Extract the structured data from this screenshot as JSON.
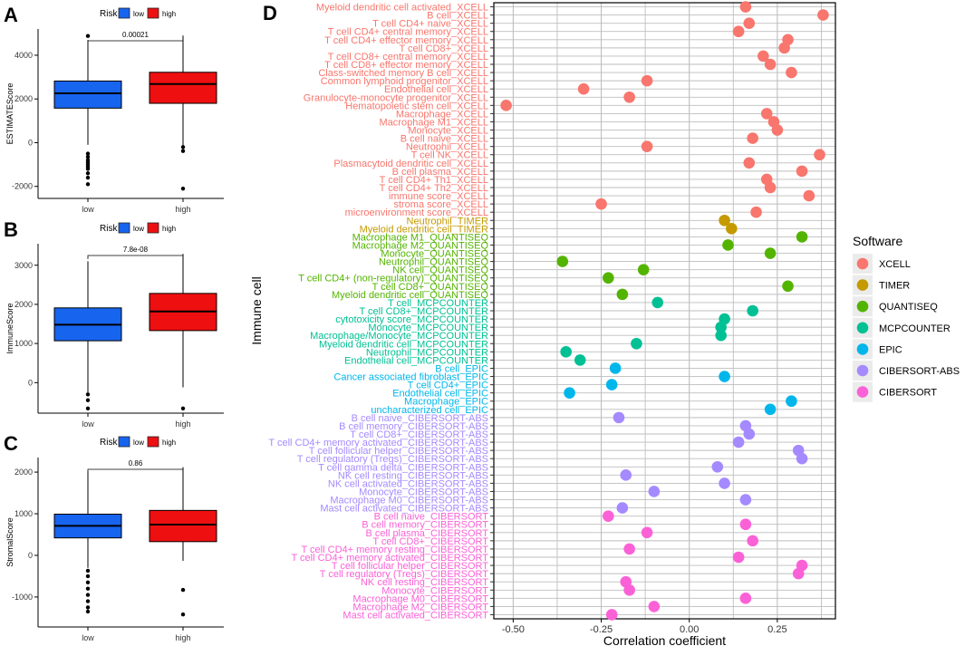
{
  "chart_data": [
    {
      "panel_label": "A",
      "type": "boxplot",
      "legend_title": "Risk",
      "legend_entries": [
        "low",
        "high"
      ],
      "ylabel": "ESTIMATEScore",
      "categories": [
        "low",
        "high"
      ],
      "yticks": [
        -2000,
        0,
        2000,
        4000
      ],
      "ylim": [
        -2550,
        5200
      ],
      "pvalue": "0.00021",
      "boxes": [
        {
          "name": "low",
          "q1": 1580,
          "median": 2260,
          "q3": 2820,
          "whisker_low": -100,
          "whisker_high": 4700,
          "outliers": [
            4880,
            -500,
            -650,
            -800,
            -900,
            -1000,
            -1100,
            -1200,
            -1400,
            -1600,
            -1900
          ]
        },
        {
          "name": "high",
          "q1": 1800,
          "median": 2680,
          "q3": 3220,
          "whisker_low": -130,
          "whisker_high": 4900,
          "outliers": [
            -200,
            -380,
            -2100
          ]
        }
      ]
    },
    {
      "panel_label": "B",
      "type": "boxplot",
      "legend_title": "Risk",
      "legend_entries": [
        "low",
        "high"
      ],
      "ylabel": "ImmuneScore",
      "categories": [
        "low",
        "high"
      ],
      "yticks": [
        0,
        1000,
        2000,
        3000
      ],
      "ylim": [
        -780,
        3550
      ],
      "pvalue": "7.8e-08",
      "boxes": [
        {
          "name": "low",
          "q1": 1070,
          "median": 1480,
          "q3": 1910,
          "whisker_low": -250,
          "whisker_high": 3100,
          "outliers": [
            -300,
            -450,
            -660
          ]
        },
        {
          "name": "high",
          "q1": 1330,
          "median": 1820,
          "q3": 2280,
          "whisker_low": -120,
          "whisker_high": 3290,
          "outliers": [
            -660
          ]
        }
      ]
    },
    {
      "panel_label": "C",
      "type": "boxplot",
      "legend_title": "Risk",
      "legend_entries": [
        "low",
        "high"
      ],
      "ylabel": "StromalScore",
      "categories": [
        "low",
        "high"
      ],
      "yticks": [
        -1000,
        0,
        1000,
        2000
      ],
      "ylim": [
        -1720,
        2350
      ],
      "pvalue": "0.86",
      "boxes": [
        {
          "name": "low",
          "q1": 420,
          "median": 710,
          "q3": 990,
          "whisker_low": -300,
          "whisker_high": 2020,
          "outliers": [
            -370,
            -500,
            -650,
            -800,
            -950,
            -1100,
            -1250,
            -1350
          ]
        },
        {
          "name": "high",
          "q1": 330,
          "median": 740,
          "q3": 1080,
          "whisker_low": -130,
          "whisker_high": 2120,
          "outliers": [
            -830,
            -1420
          ]
        }
      ]
    },
    {
      "panel_label": "D",
      "type": "scatter",
      "xlabel": "Correlation coefficient",
      "ylabel": "Immune cell",
      "xlim": [
        -0.555,
        0.415
      ],
      "xticks": [
        -0.5,
        -0.25,
        0.0,
        0.25
      ],
      "xtick_labels": [
        "-0.50",
        "-0.25",
        "0.00",
        "0.25"
      ],
      "legend_title": "Software",
      "groups": [
        {
          "name": "XCELL",
          "color": "#F8766D"
        },
        {
          "name": "TIMER",
          "color": "#C49A00"
        },
        {
          "name": "QUANTISEQ",
          "color": "#53B400"
        },
        {
          "name": "MCPCOUNTER",
          "color": "#00C094"
        },
        {
          "name": "EPIC",
          "color": "#00B6EB"
        },
        {
          "name": "CIBERSORT-ABS",
          "color": "#A58AFF"
        },
        {
          "name": "CIBERSORT",
          "color": "#FB61D7"
        }
      ],
      "points": [
        {
          "label": "Myeloid dendritic cell activated_XCELL",
          "value": 0.16,
          "group": "XCELL"
        },
        {
          "label": "B cell_XCELL",
          "value": 0.38,
          "group": "XCELL"
        },
        {
          "label": "T cell CD4+ naive_XCELL",
          "value": 0.17,
          "group": "XCELL"
        },
        {
          "label": "T cell CD4+ central memory_XCELL",
          "value": 0.14,
          "group": "XCELL"
        },
        {
          "label": "T cell CD4+ effector memory_XCELL",
          "value": 0.28,
          "group": "XCELL"
        },
        {
          "label": "T cell CD8+_XCELL",
          "value": 0.27,
          "group": "XCELL"
        },
        {
          "label": "T cell CD8+ central memory_XCELL",
          "value": 0.21,
          "group": "XCELL"
        },
        {
          "label": "T cell CD8+ effector memory_XCELL",
          "value": 0.23,
          "group": "XCELL"
        },
        {
          "label": "Class-switched memory B cell_XCELL",
          "value": 0.29,
          "group": "XCELL"
        },
        {
          "label": "Common lymphoid progenitor_XCELL",
          "value": -0.12,
          "group": "XCELL"
        },
        {
          "label": "Endothelial cell_XCELL",
          "value": -0.3,
          "group": "XCELL"
        },
        {
          "label": "Granulocyte-monocyte progenitor_XCELL",
          "value": -0.17,
          "group": "XCELL"
        },
        {
          "label": "Hematopoietic stem cell_XCELL",
          "value": -0.52,
          "group": "XCELL"
        },
        {
          "label": "Macrophage_XCELL",
          "value": 0.22,
          "group": "XCELL"
        },
        {
          "label": "Macrophage M1_XCELL",
          "value": 0.24,
          "group": "XCELL"
        },
        {
          "label": "Monocyte_XCELL",
          "value": 0.25,
          "group": "XCELL"
        },
        {
          "label": "B cell naive_XCELL",
          "value": 0.18,
          "group": "XCELL"
        },
        {
          "label": "Neutrophil_XCELL",
          "value": -0.12,
          "group": "XCELL"
        },
        {
          "label": "T cell NK_XCELL",
          "value": 0.37,
          "group": "XCELL"
        },
        {
          "label": "Plasmacytoid dendritic cell_XCELL",
          "value": 0.17,
          "group": "XCELL"
        },
        {
          "label": "B cell plasma_XCELL",
          "value": 0.32,
          "group": "XCELL"
        },
        {
          "label": "T cell CD4+ Th1_XCELL",
          "value": 0.22,
          "group": "XCELL"
        },
        {
          "label": "T cell CD4+ Th2_XCELL",
          "value": 0.23,
          "group": "XCELL"
        },
        {
          "label": "immune score_XCELL",
          "value": 0.34,
          "group": "XCELL"
        },
        {
          "label": "stroma score_XCELL",
          "value": -0.25,
          "group": "XCELL"
        },
        {
          "label": "microenvironment score_XCELL",
          "value": 0.19,
          "group": "XCELL"
        },
        {
          "label": "Neutrophil_TIMER",
          "value": 0.1,
          "group": "TIMER"
        },
        {
          "label": "Myeloid dendritic cell_TIMER",
          "value": 0.12,
          "group": "TIMER"
        },
        {
          "label": "Macrophage M1_QUANTISEQ",
          "value": 0.32,
          "group": "QUANTISEQ"
        },
        {
          "label": "Macrophage M2_QUANTISEQ",
          "value": 0.11,
          "group": "QUANTISEQ"
        },
        {
          "label": "Monocyte_QUANTISEQ",
          "value": 0.23,
          "group": "QUANTISEQ"
        },
        {
          "label": "Neutrophil_QUANTISEQ",
          "value": -0.36,
          "group": "QUANTISEQ"
        },
        {
          "label": "NK cell_QUANTISEQ",
          "value": -0.13,
          "group": "QUANTISEQ"
        },
        {
          "label": "T cell CD4+ (non-regulatory)_QUANTISEQ",
          "value": -0.23,
          "group": "QUANTISEQ"
        },
        {
          "label": "T cell CD8+_QUANTISEQ",
          "value": 0.28,
          "group": "QUANTISEQ"
        },
        {
          "label": "Myeloid dendritic cell_QUANTISEQ",
          "value": -0.19,
          "group": "QUANTISEQ"
        },
        {
          "label": "T cell_MCPCOUNTER",
          "value": -0.09,
          "group": "MCPCOUNTER"
        },
        {
          "label": "T cell CD8+_MCPCOUNTER",
          "value": 0.18,
          "group": "MCPCOUNTER"
        },
        {
          "label": "cytotoxicity score_MCPCOUNTER",
          "value": 0.1,
          "group": "MCPCOUNTER"
        },
        {
          "label": "Monocyte_MCPCOUNTER",
          "value": 0.09,
          "group": "MCPCOUNTER"
        },
        {
          "label": "Macrophage/Monocyte_MCPCOUNTER",
          "value": 0.09,
          "group": "MCPCOUNTER"
        },
        {
          "label": "Myeloid dendritic cell_MCPCOUNTER",
          "value": -0.15,
          "group": "MCPCOUNTER"
        },
        {
          "label": "Neutrophil_MCPCOUNTER",
          "value": -0.35,
          "group": "MCPCOUNTER"
        },
        {
          "label": "Endothelial cell_MCPCOUNTER",
          "value": -0.31,
          "group": "MCPCOUNTER"
        },
        {
          "label": "B cell_EPIC",
          "value": -0.21,
          "group": "EPIC"
        },
        {
          "label": "Cancer associated fibroblast_EPIC",
          "value": 0.1,
          "group": "EPIC"
        },
        {
          "label": "T cell CD4+_EPIC",
          "value": -0.22,
          "group": "EPIC"
        },
        {
          "label": "Endothelial cell_EPIC",
          "value": -0.34,
          "group": "EPIC"
        },
        {
          "label": "Macrophage_EPIC",
          "value": 0.29,
          "group": "EPIC"
        },
        {
          "label": "uncharacterized cell_EPIC",
          "value": 0.23,
          "group": "EPIC"
        },
        {
          "label": "B cell naive_CIBERSORT-ABS",
          "value": -0.2,
          "group": "CIBERSORT-ABS"
        },
        {
          "label": "B cell memory_CIBERSORT-ABS",
          "value": 0.16,
          "group": "CIBERSORT-ABS"
        },
        {
          "label": "T cell CD8+_CIBERSORT-ABS",
          "value": 0.17,
          "group": "CIBERSORT-ABS"
        },
        {
          "label": "T cell CD4+ memory activated_CIBERSORT-ABS",
          "value": 0.14,
          "group": "CIBERSORT-ABS"
        },
        {
          "label": "T cell follicular helper_CIBERSORT-ABS",
          "value": 0.31,
          "group": "CIBERSORT-ABS"
        },
        {
          "label": "T cell regulatory (Tregs)_CIBERSORT-ABS",
          "value": 0.32,
          "group": "CIBERSORT-ABS"
        },
        {
          "label": "T cell gamma delta_CIBERSORT-ABS",
          "value": 0.08,
          "group": "CIBERSORT-ABS"
        },
        {
          "label": "NK cell resting_CIBERSORT-ABS",
          "value": -0.18,
          "group": "CIBERSORT-ABS"
        },
        {
          "label": "NK cell activated_CIBERSORT-ABS",
          "value": 0.1,
          "group": "CIBERSORT-ABS"
        },
        {
          "label": "Monocyte_CIBERSORT-ABS",
          "value": -0.1,
          "group": "CIBERSORT-ABS"
        },
        {
          "label": "Macrophage M0_CIBERSORT-ABS",
          "value": 0.16,
          "group": "CIBERSORT-ABS"
        },
        {
          "label": "Mast cell activated_CIBERSORT-ABS",
          "value": -0.19,
          "group": "CIBERSORT-ABS"
        },
        {
          "label": "B cell naive_CIBERSORT",
          "value": -0.23,
          "group": "CIBERSORT"
        },
        {
          "label": "B cell memory_CIBERSORT",
          "value": 0.16,
          "group": "CIBERSORT"
        },
        {
          "label": "B cell plasma_CIBERSORT",
          "value": -0.12,
          "group": "CIBERSORT"
        },
        {
          "label": "T cell CD8+_CIBERSORT",
          "value": 0.18,
          "group": "CIBERSORT"
        },
        {
          "label": "T cell CD4+ memory resting_CIBERSORT",
          "value": -0.17,
          "group": "CIBERSORT"
        },
        {
          "label": "T cell CD4+ memory activated_CIBERSORT",
          "value": 0.14,
          "group": "CIBERSORT"
        },
        {
          "label": "T cell follicular helper_CIBERSORT",
          "value": 0.32,
          "group": "CIBERSORT"
        },
        {
          "label": "T cell regulatory (Tregs)_CIBERSORT",
          "value": 0.31,
          "group": "CIBERSORT"
        },
        {
          "label": "NK cell resting_CIBERSORT",
          "value": -0.18,
          "group": "CIBERSORT"
        },
        {
          "label": "Monocyte_CIBERSORT",
          "value": -0.17,
          "group": "CIBERSORT"
        },
        {
          "label": "Macrophage M0_CIBERSORT",
          "value": 0.16,
          "group": "CIBERSORT"
        },
        {
          "label": "Macrophage M2_CIBERSORT",
          "value": -0.1,
          "group": "CIBERSORT"
        },
        {
          "label": "Mast cell activated_CIBERSORT",
          "value": -0.22,
          "group": "CIBERSORT"
        }
      ]
    }
  ],
  "colors": {
    "low": "#1764EF",
    "high": "#EE0F10"
  }
}
